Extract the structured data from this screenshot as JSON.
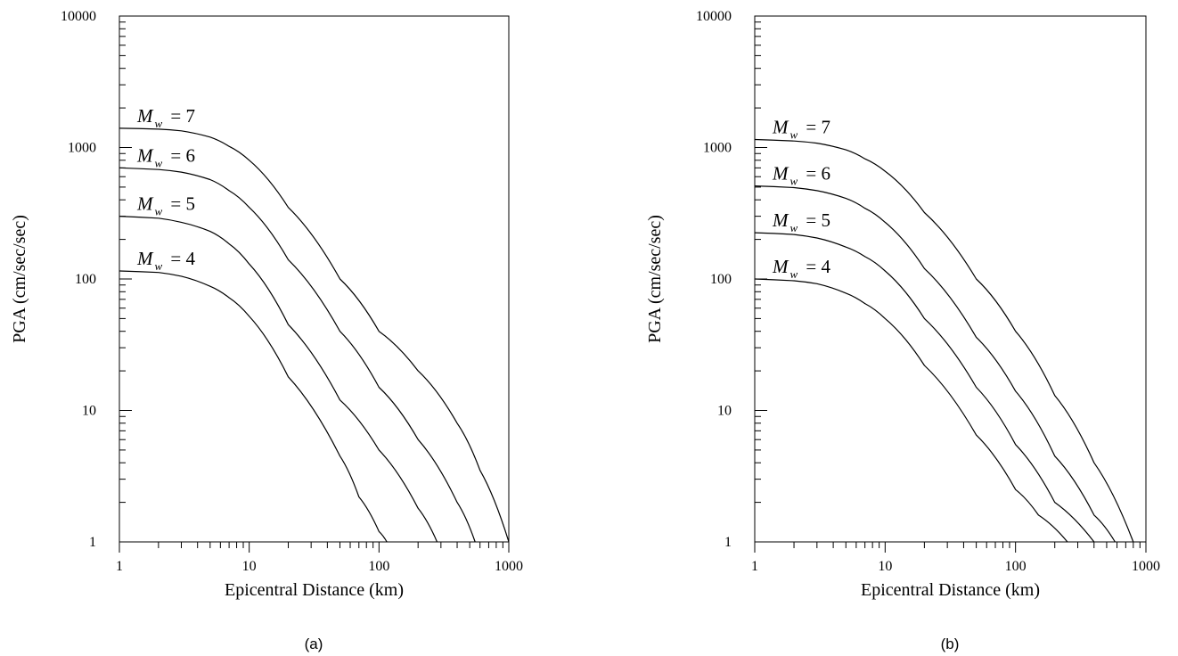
{
  "chart_data": [
    {
      "type": "line",
      "panel_label": "(a)",
      "xlabel": "Epicentral Distance  (km)",
      "ylabel": "PGA  (cm/sec/sec)",
      "xscale": "log",
      "yscale": "log",
      "xlim": [
        1,
        1000
      ],
      "ylim": [
        1,
        10000
      ],
      "x_ticks": [
        "1",
        "10",
        "100",
        "1000"
      ],
      "y_ticks": [
        "1",
        "10",
        "100",
        "1000",
        "10000"
      ],
      "grid": false,
      "series": [
        {
          "name": "M_w = 7",
          "label_main": "M",
          "label_sub": "w",
          "label_rest": " = 7",
          "x": [
            1,
            2,
            3,
            5,
            7,
            10,
            20,
            50,
            100,
            200,
            400,
            600,
            1000
          ],
          "y": [
            1400,
            1380,
            1340,
            1200,
            1020,
            800,
            350,
            100,
            40,
            20,
            8,
            3.5,
            1
          ]
        },
        {
          "name": "M_w = 6",
          "label_main": "M",
          "label_sub": "w",
          "label_rest": " = 6",
          "x": [
            1,
            2,
            3,
            5,
            7,
            10,
            20,
            50,
            100,
            200,
            400,
            550
          ],
          "y": [
            700,
            680,
            650,
            570,
            470,
            350,
            140,
            40,
            15,
            6,
            2,
            1
          ]
        },
        {
          "name": "M_w = 5",
          "label_main": "M",
          "label_sub": "w",
          "label_rest": " = 5",
          "x": [
            1,
            2,
            3,
            5,
            7,
            10,
            20,
            50,
            100,
            200,
            280
          ],
          "y": [
            300,
            290,
            270,
            230,
            185,
            130,
            45,
            12,
            5,
            1.8,
            1
          ]
        },
        {
          "name": "M_w = 4",
          "label_main": "M",
          "label_sub": "w",
          "label_rest": " = 4",
          "x": [
            1,
            2,
            3,
            5,
            7,
            10,
            20,
            50,
            70,
            100,
            115
          ],
          "y": [
            115,
            112,
            105,
            88,
            72,
            52,
            18,
            4.5,
            2.2,
            1.2,
            1
          ]
        }
      ]
    },
    {
      "type": "line",
      "panel_label": "(b)",
      "xlabel": "Epicentral Distance  (km)",
      "ylabel": "PGA  (cm/sec/sec)",
      "xscale": "log",
      "yscale": "log",
      "xlim": [
        1,
        1000
      ],
      "ylim": [
        1,
        10000
      ],
      "x_ticks": [
        "1",
        "10",
        "100",
        "1000"
      ],
      "y_ticks": [
        "1",
        "10",
        "100",
        "1000",
        "10000"
      ],
      "grid": false,
      "series": [
        {
          "name": "M_w = 7",
          "label_main": "M",
          "label_sub": "w",
          "label_rest": " = 7",
          "x": [
            1,
            2,
            3,
            5,
            7,
            10,
            20,
            50,
            100,
            200,
            400,
            800
          ],
          "y": [
            1150,
            1120,
            1080,
            960,
            820,
            660,
            320,
            100,
            40,
            13,
            4,
            1
          ]
        },
        {
          "name": "M_w = 6",
          "label_main": "M",
          "label_sub": "w",
          "label_rest": " = 6",
          "x": [
            1,
            2,
            3,
            5,
            7,
            10,
            20,
            50,
            100,
            200,
            400,
            580
          ],
          "y": [
            510,
            495,
            470,
            410,
            345,
            270,
            120,
            36,
            14,
            4.5,
            1.6,
            1
          ]
        },
        {
          "name": "M_w = 5",
          "label_main": "M",
          "label_sub": "w",
          "label_rest": " = 5",
          "x": [
            1,
            2,
            3,
            5,
            7,
            10,
            20,
            50,
            100,
            200,
            400
          ],
          "y": [
            225,
            218,
            205,
            175,
            148,
            115,
            50,
            15,
            5.5,
            2,
            1
          ]
        },
        {
          "name": "M_w = 4",
          "label_main": "M",
          "label_sub": "w",
          "label_rest": " = 4",
          "x": [
            1,
            2,
            3,
            5,
            7,
            10,
            20,
            50,
            100,
            150,
            250
          ],
          "y": [
            100,
            97,
            92,
            78,
            65,
            50,
            22,
            6.5,
            2.5,
            1.6,
            1
          ]
        }
      ]
    }
  ]
}
